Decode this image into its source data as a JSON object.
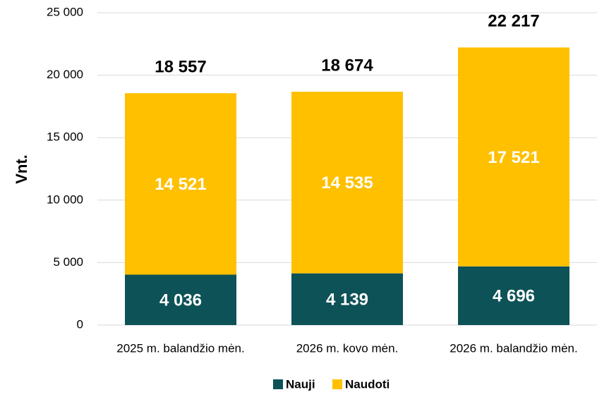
{
  "chart_data": {
    "type": "stacked_bar",
    "y_label": "Vnt.",
    "categories": [
      "2025 m. balandžio mėn.",
      "2026 m. kovo mėn.",
      "2026 m. balandžio mėn."
    ],
    "series": [
      {
        "name": "Nauji",
        "color": "#0d5257",
        "values": [
          4036,
          4139,
          4696
        ],
        "value_labels": [
          "4 036",
          "4 139",
          "4 696"
        ]
      },
      {
        "name": "Naudoti",
        "color": "#ffc000",
        "values": [
          14521,
          14535,
          17521
        ],
        "value_labels": [
          "14 521",
          "14 535",
          "17 521"
        ]
      }
    ],
    "totals": [
      18557,
      18674,
      22217
    ],
    "total_labels": [
      "18 557",
      "18 674",
      "22 217"
    ],
    "ylim": [
      0,
      25000
    ],
    "yticks": [
      0,
      {
        "value": 5000,
        "label": "5 000"
      },
      {
        "value": 10000,
        "label": "10 000"
      },
      {
        "value": 15000,
        "label": "15 000"
      },
      {
        "value": 20000,
        "label": "20 000"
      },
      {
        "value": 25000,
        "label": "25 000"
      }
    ],
    "grid": true,
    "legend": "bottom"
  }
}
